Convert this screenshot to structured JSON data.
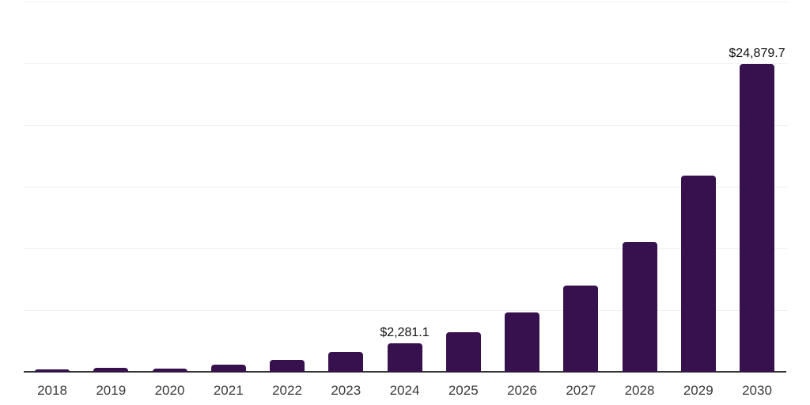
{
  "chart_data": {
    "type": "bar",
    "title": "",
    "xlabel": "",
    "ylabel": "",
    "categories": [
      "2018",
      "2019",
      "2020",
      "2021",
      "2022",
      "2023",
      "2024",
      "2025",
      "2026",
      "2027",
      "2028",
      "2029",
      "2030"
    ],
    "values": [
      170,
      300,
      260,
      590,
      980,
      1620,
      2281.1,
      3200,
      4790,
      6980,
      10470,
      15900,
      24879.7
    ],
    "point_labels": [
      "",
      "",
      "",
      "",
      "",
      "",
      "$2,281.1",
      "",
      "",
      "",
      "",
      "",
      "$24,879.7"
    ],
    "ylim": [
      0,
      30000
    ],
    "gridline_step": 5000,
    "grid": true,
    "legend": false,
    "bar_color": "#36114e",
    "axis_color": "#333333",
    "gridline_color": "#f0f0f0",
    "tick_label_color": "#3b3b3b",
    "data_label_color": "#111111"
  }
}
